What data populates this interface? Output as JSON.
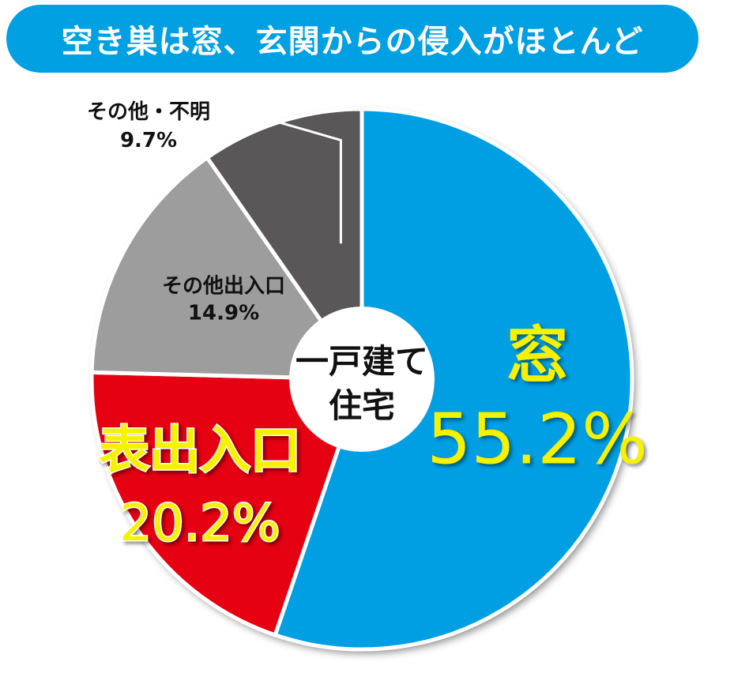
{
  "title": "空き巣は窓、玄関からの侵入がほとんど",
  "chart_data": {
    "type": "pie",
    "center_label": [
      "一戸建て",
      "住宅"
    ],
    "start_angle_deg": 0,
    "slices": [
      {
        "label": "窓",
        "value": 55.2,
        "display": "55.2%",
        "color": "#009fe3",
        "text_color": "#f5f100",
        "style": "large"
      },
      {
        "label": "表出入口",
        "value": 20.2,
        "display": "20.2%",
        "color": "#e50012",
        "text_color": "#f5f100",
        "style": "large"
      },
      {
        "label": "その他出入口",
        "value": 14.9,
        "display": "14.9%",
        "color": "#9d9d9d",
        "text_color": "#111111",
        "style": "small"
      },
      {
        "label": "その他・不明",
        "value": 9.7,
        "display": "9.7%",
        "color": "#595757",
        "text_color": "#111111",
        "style": "outside"
      }
    ]
  }
}
